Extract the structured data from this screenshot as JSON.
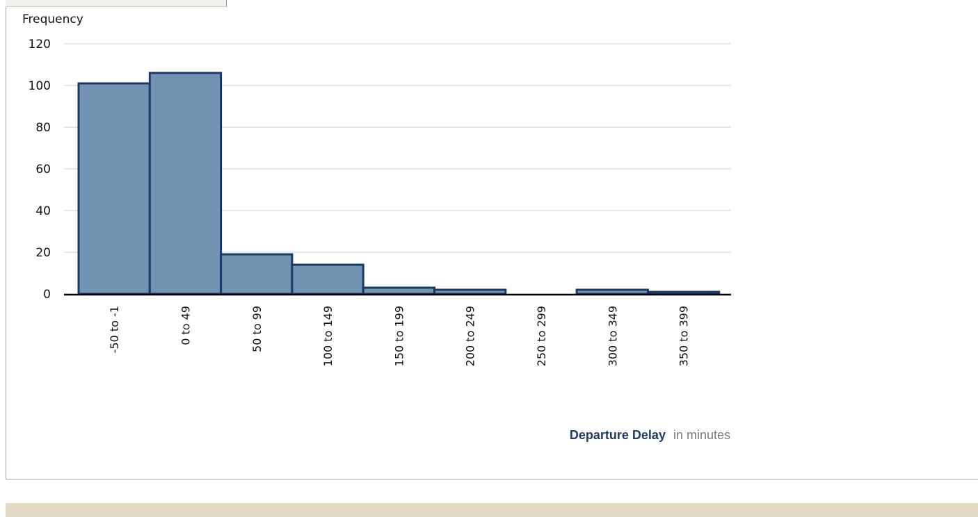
{
  "colors": {
    "bar_fill": "#7393b3",
    "bar_stroke": "#1b3a63",
    "grid": "#cfcfcf",
    "axis": "#000000",
    "xlabel_color": "#1f3d66",
    "unit_color": "#7a7a7a",
    "footer": "#e2dcc6"
  },
  "chart_data": {
    "type": "bar",
    "title": "",
    "ylabel": "Frequency",
    "xlabel": "Departure Delay",
    "xlabel_unit": "in minutes",
    "categories": [
      "-50 to -1",
      "0 to 49",
      "50 to 99",
      "100 to 149",
      "150 to 199",
      "200 to 249",
      "250 to 299",
      "300 to 349",
      "350 to 399"
    ],
    "values": [
      101,
      106,
      19,
      14,
      3,
      2,
      0,
      2,
      1
    ],
    "ylim": [
      0,
      120
    ],
    "yticks": [
      0,
      20,
      40,
      60,
      80,
      100,
      120
    ],
    "grid": true,
    "legend": "none"
  }
}
